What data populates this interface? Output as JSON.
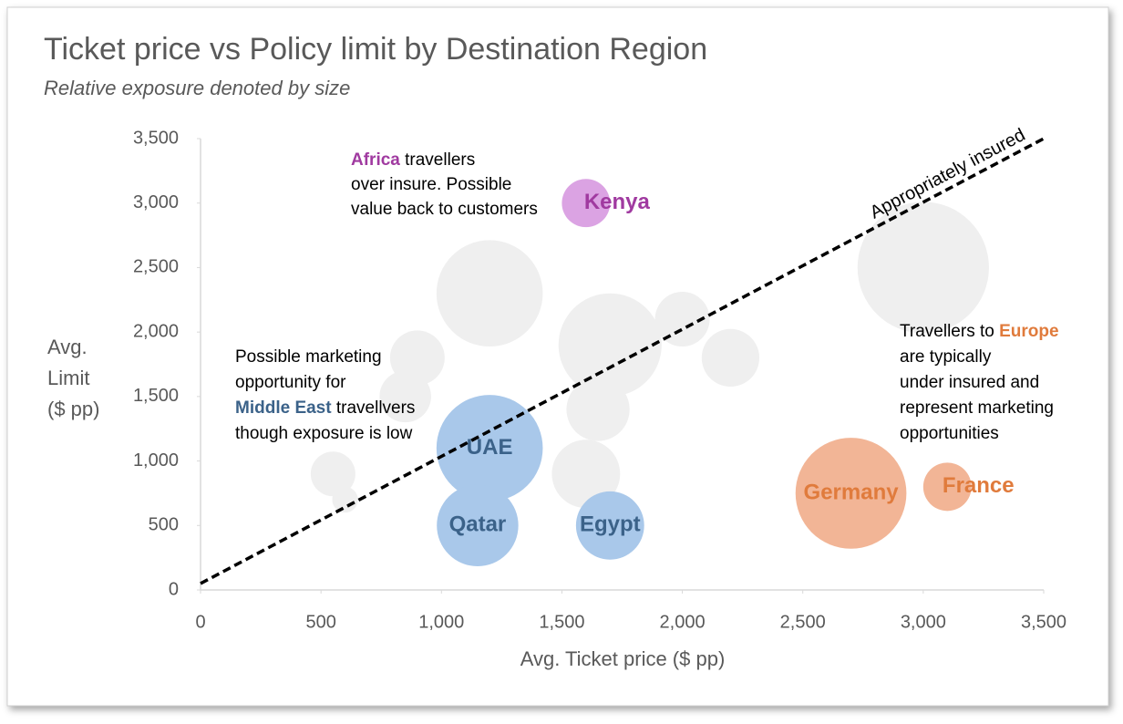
{
  "chart_data": {
    "type": "bubble",
    "title": "Ticket price vs Policy limit by Destination Region",
    "subtitle": "Relative exposure denoted by size",
    "x_label": "Avg. Ticket price ($ pp)",
    "y_label": [
      "Avg.",
      "Limit",
      "($ pp)"
    ],
    "xlim": [
      0,
      3500
    ],
    "ylim": [
      0,
      3500
    ],
    "xticks": [
      0,
      500,
      {
        "value": 1000,
        "label": "1,000"
      },
      {
        "value": 1500,
        "label": "1,500"
      },
      {
        "value": 2000,
        "label": "2,000"
      },
      {
        "value": 2500,
        "label": "2,500"
      },
      {
        "value": 3000,
        "label": "3,000"
      },
      {
        "value": 3500,
        "label": "3,500"
      }
    ],
    "yticks": [
      0,
      500,
      {
        "value": 1000,
        "label": "1,000"
      },
      {
        "value": 1500,
        "label": "1,500"
      },
      {
        "value": 2000,
        "label": "2,000"
      },
      {
        "value": 2500,
        "label": "2,500"
      },
      {
        "value": 3000,
        "label": "3,000"
      },
      {
        "value": 3500,
        "label": "3,500"
      }
    ],
    "grid": false,
    "series": [
      {
        "color": "#efefef",
        "x": [
          1200,
          1700,
          2000,
          2200,
          3000,
          900,
          1650,
          1600,
          550,
          850,
          600
        ],
        "y": [
          2300,
          1900,
          2100,
          1800,
          2500,
          1800,
          1400,
          900,
          900,
          1500,
          700
        ],
        "size": [
          34,
          32,
          9,
          10,
          52,
          9,
          12,
          14,
          6,
          8,
          2
        ]
      },
      {
        "color": "#dba3e3",
        "label_color": "#a03aa0",
        "x": [
          1600
        ],
        "y": [
          3000
        ],
        "size": [
          7
        ],
        "labels": [
          "Kenya"
        ]
      },
      {
        "color": "#a9c8ea",
        "label_color": "#3b6289",
        "x": [
          1200,
          1150,
          1700
        ],
        "y": [
          1100,
          500,
          500
        ],
        "size": [
          34,
          20,
          14
        ],
        "labels": [
          "UAE",
          "Qatar",
          "Egypt"
        ]
      },
      {
        "color": "#f2b596",
        "label_color": "#e07b3c",
        "x": [
          2700,
          3100
        ],
        "y": [
          750,
          800
        ],
        "size": [
          37,
          7
        ],
        "labels": [
          "Germany",
          "France"
        ]
      }
    ],
    "reference_line": {
      "label": "Appropriately insured",
      "x": [
        0,
        3500
      ],
      "y": [
        50,
        3500
      ]
    },
    "annotations": [
      {
        "lines": [
          [
            {
              "text": "Africa",
              "color": "#a03aa0",
              "bold": true
            },
            {
              "text": " travellers"
            }
          ],
          [
            {
              "text": "over insure. Possible"
            }
          ],
          [
            {
              "text": "value back to customers"
            }
          ]
        ]
      },
      {
        "lines": [
          [
            {
              "text": "Possible marketing"
            }
          ],
          [
            {
              "text": "opportunity for"
            }
          ],
          [
            {
              "text": "Middle East",
              "color": "#3b6289",
              "bold": true
            },
            {
              "text": " travellvers"
            }
          ],
          [
            {
              "text": "though exposure is low"
            }
          ]
        ]
      },
      {
        "lines": [
          [
            {
              "text": "Travellers to "
            },
            {
              "text": "Europe",
              "color": "#e07b3c",
              "bold": true
            }
          ],
          [
            {
              "text": "are typically"
            }
          ],
          [
            {
              "text": "under insured and"
            }
          ],
          [
            {
              "text": "represent marketing"
            }
          ],
          [
            {
              "text": "opportunities"
            }
          ]
        ]
      }
    ]
  }
}
